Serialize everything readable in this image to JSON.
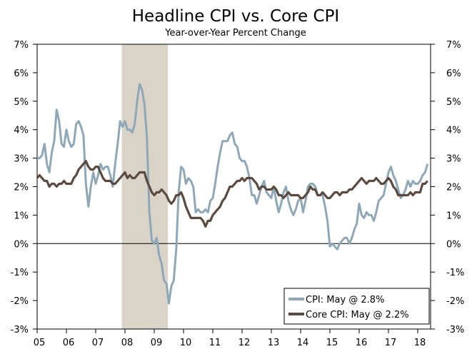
{
  "chart_data": {
    "type": "line",
    "title": "Headline CPI vs. Core CPI",
    "subtitle": "Year-over-Year Percent Change",
    "xlabel": "",
    "ylabel": "",
    "ylim": [
      -3,
      7
    ],
    "y_ticks": [
      "-3%",
      "-2%",
      "-1%",
      "0%",
      "1%",
      "2%",
      "3%",
      "4%",
      "5%",
      "6%",
      "7%"
    ],
    "y_tick_values": [
      -3,
      -2,
      -1,
      0,
      1,
      2,
      3,
      4,
      5,
      6,
      7
    ],
    "x_ticks": [
      "05",
      "06",
      "07",
      "08",
      "09",
      "10",
      "11",
      "12",
      "13",
      "14",
      "15",
      "16",
      "17",
      "18"
    ],
    "x_start": "2005-01",
    "x_end": "2018-05",
    "frequency": "monthly",
    "grid": false,
    "zero_line": true,
    "recession_shading": {
      "start": "2007-12",
      "end": "2009-06",
      "color": "#d9d4c7"
    },
    "legend": {
      "placement": "bottom-right",
      "entries": [
        "CPI: May @ 2.8%",
        "Core CPI: May @ 2.2%"
      ]
    },
    "series": [
      {
        "name": "CPI: May @ 2.8%",
        "color": "#8fa8b8",
        "values": [
          3.0,
          3.0,
          3.1,
          3.5,
          2.8,
          2.5,
          3.2,
          3.6,
          4.7,
          4.3,
          3.5,
          3.4,
          4.0,
          3.6,
          3.4,
          3.5,
          4.2,
          4.3,
          4.1,
          3.8,
          2.1,
          1.3,
          2.0,
          2.5,
          2.1,
          2.4,
          2.8,
          2.6,
          2.7,
          2.7,
          2.4,
          2.0,
          2.8,
          3.5,
          4.3,
          4.1,
          4.3,
          4.0,
          4.0,
          3.9,
          4.2,
          5.0,
          5.6,
          5.4,
          4.9,
          3.7,
          1.1,
          0.1,
          0.0,
          0.2,
          -0.4,
          -0.7,
          -1.3,
          -1.4,
          -2.1,
          -1.5,
          -1.3,
          -0.2,
          1.8,
          2.7,
          2.6,
          2.1,
          2.3,
          2.2,
          2.0,
          1.1,
          1.2,
          1.1,
          1.1,
          1.2,
          1.1,
          1.5,
          1.6,
          2.1,
          2.7,
          3.2,
          3.6,
          3.6,
          3.6,
          3.8,
          3.9,
          3.5,
          3.4,
          3.0,
          2.9,
          2.9,
          2.7,
          2.3,
          1.7,
          1.7,
          1.4,
          1.7,
          2.0,
          2.2,
          1.8,
          1.7,
          1.6,
          2.0,
          1.5,
          1.1,
          1.4,
          1.8,
          2.0,
          1.5,
          1.2,
          1.0,
          1.2,
          1.5,
          1.6,
          1.1,
          1.5,
          2.0,
          2.1,
          2.1,
          2.0,
          1.7,
          1.7,
          1.7,
          1.3,
          0.8,
          -0.1,
          0.0,
          -0.1,
          -0.2,
          0.0,
          0.1,
          0.2,
          0.2,
          0.0,
          0.2,
          0.5,
          0.7,
          1.4,
          1.0,
          0.9,
          1.1,
          1.0,
          1.0,
          0.8,
          1.1,
          1.5,
          1.6,
          1.7,
          2.1,
          2.5,
          2.7,
          2.4,
          2.2,
          1.9,
          1.6,
          1.7,
          1.9,
          2.2,
          2.0,
          2.2,
          2.1,
          2.1,
          2.2,
          2.4,
          2.5,
          2.8
        ]
      },
      {
        "name": "Core CPI: May @ 2.2%",
        "color": "#5a4a3f",
        "values": [
          2.3,
          2.4,
          2.3,
          2.2,
          2.2,
          2.0,
          2.1,
          2.1,
          2.0,
          2.1,
          2.1,
          2.2,
          2.1,
          2.1,
          2.1,
          2.3,
          2.4,
          2.6,
          2.7,
          2.8,
          2.9,
          2.7,
          2.6,
          2.6,
          2.7,
          2.7,
          2.5,
          2.3,
          2.2,
          2.2,
          2.2,
          2.1,
          2.1,
          2.2,
          2.3,
          2.4,
          2.5,
          2.3,
          2.4,
          2.3,
          2.3,
          2.4,
          2.5,
          2.5,
          2.5,
          2.2,
          2.0,
          1.8,
          1.7,
          1.8,
          1.8,
          1.9,
          1.8,
          1.7,
          1.5,
          1.4,
          1.5,
          1.7,
          1.7,
          1.8,
          1.6,
          1.3,
          1.1,
          0.9,
          0.9,
          0.9,
          0.9,
          0.9,
          0.8,
          0.6,
          0.8,
          0.8,
          1.0,
          1.1,
          1.2,
          1.3,
          1.5,
          1.6,
          1.8,
          2.0,
          2.0,
          2.1,
          2.2,
          2.2,
          2.3,
          2.2,
          2.3,
          2.3,
          2.3,
          2.2,
          2.1,
          1.9,
          2.0,
          2.0,
          1.9,
          1.9,
          1.9,
          2.0,
          1.9,
          1.7,
          1.7,
          1.6,
          1.7,
          1.8,
          1.7,
          1.7,
          1.7,
          1.7,
          1.6,
          1.6,
          1.7,
          1.8,
          2.0,
          1.9,
          1.9,
          1.7,
          1.7,
          1.8,
          1.7,
          1.6,
          1.6,
          1.7,
          1.8,
          1.8,
          1.7,
          1.8,
          1.8,
          1.8,
          1.9,
          1.9,
          2.0,
          2.1,
          2.2,
          2.3,
          2.2,
          2.1,
          2.2,
          2.2,
          2.2,
          2.3,
          2.2,
          2.1,
          2.1,
          2.2,
          2.3,
          2.2,
          2.0,
          1.9,
          1.7,
          1.7,
          1.7,
          1.7,
          1.7,
          1.8,
          1.7,
          1.8,
          1.8,
          1.8,
          2.1,
          2.1,
          2.2
        ]
      }
    ]
  }
}
